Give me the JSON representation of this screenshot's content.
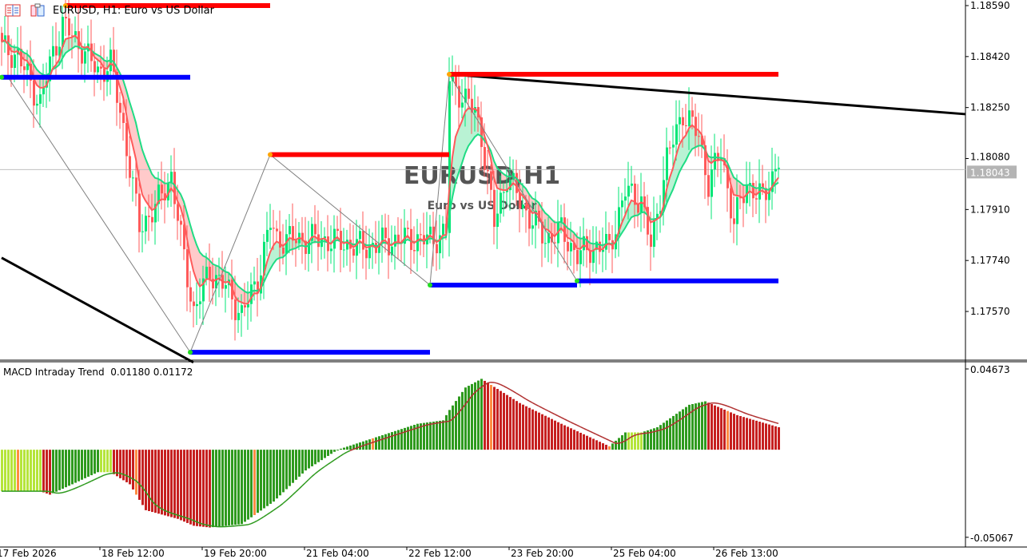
{
  "header": {
    "title": "EURUSD, H1:  Euro vs US Dollar"
  },
  "watermark": {
    "symbol": "EURUSD,H1",
    "description": "Euro vs US Dollar"
  },
  "icons": [
    "chart-list-icon",
    "template-icon"
  ],
  "colors": {
    "bull": "#00e676",
    "bear": "#ff5a5a",
    "fast_ma": "#ff5a5a",
    "slow_ma": "#1fdc84",
    "support": "#0000ff",
    "resistance": "#ff0000",
    "trendline": "#000000",
    "macd_up": "#2e9a1e",
    "macd_down": "#c62020",
    "macd_flat": "#b5e53a",
    "price_label_bg": "#b4b4b4"
  },
  "chart_data": [
    {
      "type": "candlestick",
      "symbol": "EURUSD",
      "timeframe": "H1",
      "ylim": [
        1.1744,
        1.1861
      ],
      "y_ticks": [
        "1.18590",
        "1.18420",
        "1.18250",
        "1.18080",
        "1.17910",
        "1.17740",
        "1.17570"
      ],
      "current_price": "1.18043",
      "x_ticks": [
        "17 Feb 2026",
        "18 Feb 12:00",
        "19 Feb 20:00",
        "21 Feb 04:00",
        "22 Feb 12:00",
        "23 Feb 20:00",
        "25 Feb 04:00",
        "26 Feb 13:00"
      ],
      "bars": 243,
      "key_closes": [
        [
          0,
          1.18449
        ],
        [
          5,
          1.18422
        ],
        [
          12,
          1.18263
        ],
        [
          15,
          1.18396
        ],
        [
          19,
          1.18529
        ],
        [
          25,
          1.18449
        ],
        [
          30,
          1.18369
        ],
        [
          34,
          1.18396
        ],
        [
          38,
          1.18183
        ],
        [
          43,
          1.1785
        ],
        [
          48,
          1.17917
        ],
        [
          53,
          1.18023
        ],
        [
          56,
          1.17811
        ],
        [
          60,
          1.1757
        ],
        [
          65,
          1.17704
        ],
        [
          70,
          1.17651
        ],
        [
          75,
          1.17558
        ],
        [
          80,
          1.17677
        ],
        [
          84,
          1.17864
        ],
        [
          86,
          1.17811
        ],
        [
          93,
          1.17811
        ],
        [
          100,
          1.17811
        ],
        [
          113,
          1.17784
        ],
        [
          125,
          1.17811
        ],
        [
          135,
          1.17811
        ],
        [
          139,
          1.17837
        ],
        [
          140,
          1.18343
        ],
        [
          144,
          1.18289
        ],
        [
          148,
          1.18236
        ],
        [
          150,
          1.18156
        ],
        [
          154,
          1.17864
        ],
        [
          158,
          1.18023
        ],
        [
          163,
          1.17917
        ],
        [
          170,
          1.17811
        ],
        [
          175,
          1.17837
        ],
        [
          180,
          1.17757
        ],
        [
          185,
          1.17784
        ],
        [
          190,
          1.17784
        ],
        [
          195,
          1.1797
        ],
        [
          200,
          1.17943
        ],
        [
          203,
          1.17784
        ],
        [
          208,
          1.18077
        ],
        [
          213,
          1.18236
        ],
        [
          218,
          1.18156
        ],
        [
          221,
          1.17997
        ],
        [
          225,
          1.18103
        ],
        [
          229,
          1.17864
        ],
        [
          233,
          1.17997
        ],
        [
          238,
          1.17943
        ],
        [
          243,
          1.18077
        ]
      ],
      "levels": [
        {
          "kind": "resistance",
          "price": 1.1859,
          "from_bar": 20,
          "to_bar": 84
        },
        {
          "kind": "support",
          "price": 1.18351,
          "from_bar": 0,
          "to_bar": 59
        },
        {
          "kind": "resistance",
          "price": 1.18093,
          "from_bar": 84,
          "to_bar": 140
        },
        {
          "kind": "resistance",
          "price": 1.18361,
          "from_bar": 140,
          "to_bar": 243
        },
        {
          "kind": "support",
          "price": 1.17434,
          "from_bar": 59,
          "to_bar": 134
        },
        {
          "kind": "support",
          "price": 1.17658,
          "from_bar": 134,
          "to_bar": 180
        },
        {
          "kind": "support",
          "price": 1.17672,
          "from_bar": 180,
          "to_bar": 243
        }
      ],
      "trendlines": [
        {
          "from": [
            0,
            1.17749
          ],
          "to": [
            60,
            1.174
          ]
        },
        {
          "from": [
            140,
            1.18361
          ],
          "to": [
            302,
            1.18228
          ]
        }
      ],
      "zigzag": [
        [
          2,
          1.18351
        ],
        [
          59,
          1.17434
        ],
        [
          84,
          1.18093
        ],
        [
          134,
          1.17658
        ],
        [
          140,
          1.18361
        ],
        [
          180,
          1.17672
        ]
      ]
    },
    {
      "type": "histogram",
      "title": "MACD Intraday Trend",
      "values_label": [
        "0.01180",
        "0.01172"
      ],
      "ylim": [
        -0.05067,
        0.04673
      ],
      "y_ticks": [
        "0.04673",
        "-0.05067"
      ],
      "key_values": [
        [
          0,
          -0.024
        ],
        [
          12,
          -0.024
        ],
        [
          15,
          -0.026
        ],
        [
          22,
          -0.02
        ],
        [
          30,
          -0.013
        ],
        [
          34,
          -0.013
        ],
        [
          40,
          -0.02
        ],
        [
          45,
          -0.035
        ],
        [
          55,
          -0.04
        ],
        [
          60,
          -0.044
        ],
        [
          65,
          -0.045
        ],
        [
          75,
          -0.043
        ],
        [
          85,
          -0.03
        ],
        [
          95,
          -0.012
        ],
        [
          105,
          0.0
        ],
        [
          120,
          0.009
        ],
        [
          130,
          0.015
        ],
        [
          138,
          0.017
        ],
        [
          140,
          0.023
        ],
        [
          145,
          0.036
        ],
        [
          150,
          0.041
        ],
        [
          162,
          0.027
        ],
        [
          175,
          0.015
        ],
        [
          190,
          0.002
        ],
        [
          195,
          0.01
        ],
        [
          200,
          0.01
        ],
        [
          205,
          0.013
        ],
        [
          215,
          0.026
        ],
        [
          220,
          0.028
        ],
        [
          230,
          0.02
        ],
        [
          243,
          0.013
        ]
      ]
    }
  ]
}
